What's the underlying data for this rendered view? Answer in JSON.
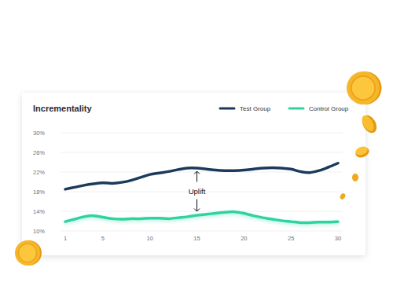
{
  "chart_data": {
    "type": "line",
    "title": "Incrementality",
    "annotation": "Uplift",
    "x": [
      1,
      2,
      3,
      4,
      5,
      6,
      7,
      8,
      9,
      10,
      11,
      12,
      13,
      14,
      15,
      16,
      17,
      18,
      19,
      20,
      21,
      22,
      23,
      24,
      25,
      26,
      27,
      28,
      29,
      30
    ],
    "series": [
      {
        "name": "Test Group",
        "color": "#1b3a5c",
        "values": [
          18.5,
          18.9,
          19.3,
          19.6,
          19.8,
          19.7,
          19.9,
          20.3,
          20.9,
          21.5,
          21.8,
          22.1,
          22.5,
          22.8,
          22.8,
          22.6,
          22.4,
          22.3,
          22.3,
          22.4,
          22.6,
          22.8,
          22.9,
          22.8,
          22.6,
          22.1,
          21.9,
          22.3,
          23.0,
          23.8
        ]
      },
      {
        "name": "Control Group",
        "color": "#2ed3a0",
        "values": [
          11.9,
          12.4,
          12.9,
          13.1,
          12.8,
          12.5,
          12.4,
          12.5,
          12.5,
          12.6,
          12.6,
          12.5,
          12.7,
          12.9,
          13.2,
          13.4,
          13.6,
          13.8,
          13.9,
          13.6,
          13.1,
          12.7,
          12.4,
          12.1,
          11.9,
          11.7,
          11.7,
          11.8,
          11.8,
          11.9
        ]
      }
    ],
    "xlim": [
      1,
      30
    ],
    "xticks": [
      1,
      5,
      10,
      15,
      20,
      25,
      30
    ],
    "ylim": [
      10,
      30
    ],
    "yticks": [
      {
        "value": 10,
        "label": "10%"
      },
      {
        "value": 14,
        "label": "14%"
      },
      {
        "value": 18,
        "label": "18%"
      },
      {
        "value": 22,
        "label": "22%"
      },
      {
        "value": 26,
        "label": "26%"
      },
      {
        "value": 30,
        "label": "30%"
      }
    ],
    "grid": true,
    "legend": "top-right"
  }
}
